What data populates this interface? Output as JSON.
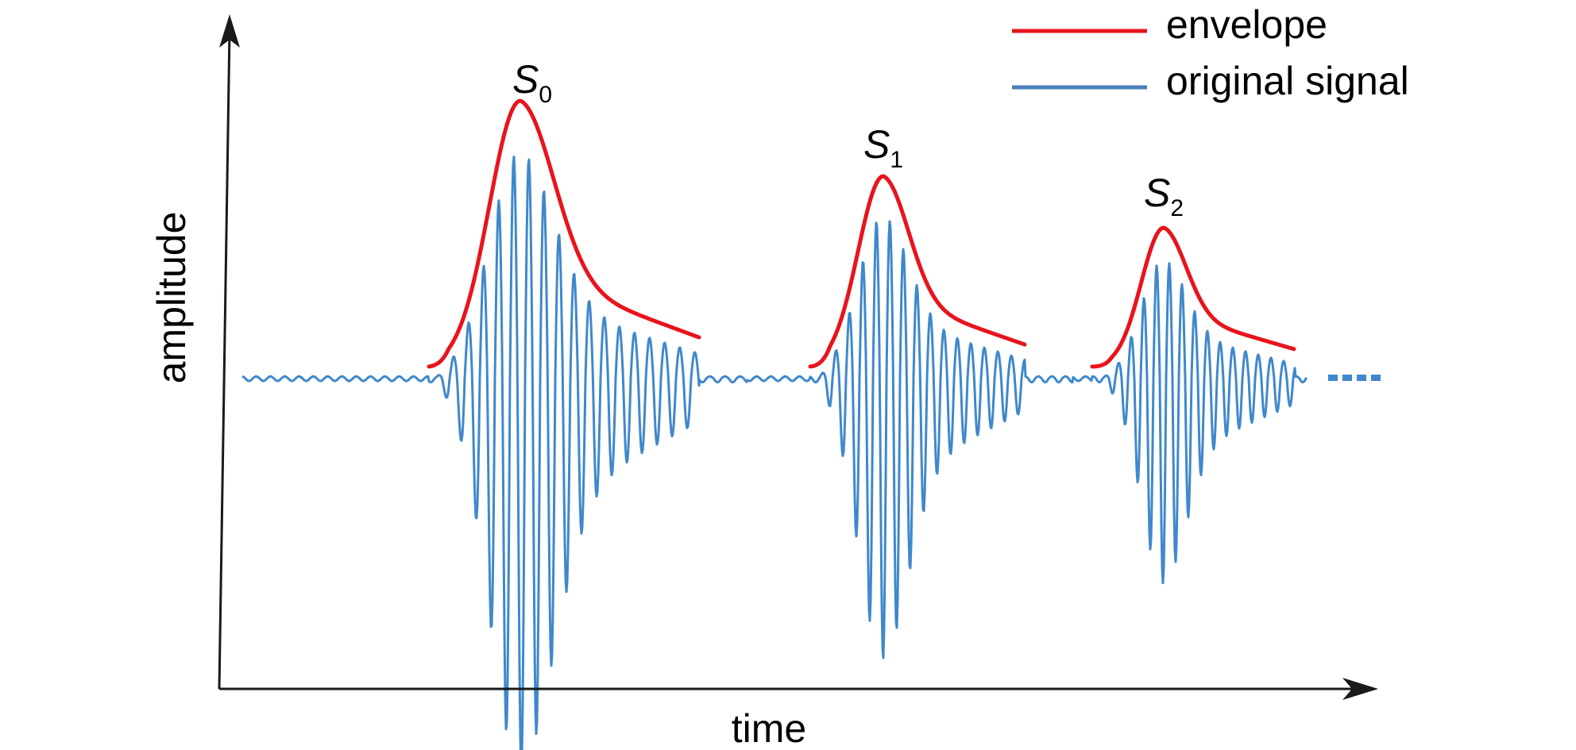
{
  "axes": {
    "x_label": "time",
    "y_label": "amplitude"
  },
  "legend": [
    {
      "label": "envelope",
      "color": "#e8141c"
    },
    {
      "label": "original signal",
      "color": "#4a7fb8"
    }
  ],
  "peaks": [
    {
      "letter": "S",
      "subscript": "0"
    },
    {
      "letter": "S",
      "subscript": "1"
    },
    {
      "letter": "S",
      "subscript": "2"
    }
  ],
  "continuation": "...",
  "colors": {
    "axis": "#1a1a1a",
    "signal": "#3f88cc",
    "envelope": "#e8141c"
  }
}
